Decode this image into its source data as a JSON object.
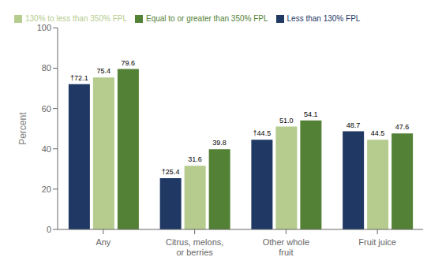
{
  "chart_data": {
    "type": "bar",
    "categories": [
      "Any",
      "Citrus, melons, or berries",
      "Other whole fruit",
      "Fruit juice"
    ],
    "series": [
      {
        "name": "Less than 130% FPL",
        "color": "#1f3864",
        "values": [
          72.1,
          25.4,
          44.5,
          48.7
        ],
        "value_labels": [
          "†72.1",
          "†25.4",
          "†44.5",
          "48.7"
        ]
      },
      {
        "name": "130% to less than 350% FPL",
        "color": "#b5cc8e",
        "values": [
          75.4,
          31.6,
          51.0,
          44.5
        ],
        "value_labels": [
          "75.4",
          "31.6",
          "51.0",
          "44.5"
        ]
      },
      {
        "name": "Equal to or greater than 350% FPL",
        "color": "#538135",
        "values": [
          79.6,
          39.8,
          54.1,
          47.6
        ],
        "value_labels": [
          "79.6",
          "39.8",
          "54.1",
          "47.6"
        ]
      }
    ],
    "ylabel": "Percent",
    "ylim": [
      0,
      100
    ],
    "yticks": [
      0,
      20,
      40,
      60,
      80,
      100
    ],
    "grid": false,
    "legend": "top",
    "data_labels": true
  }
}
